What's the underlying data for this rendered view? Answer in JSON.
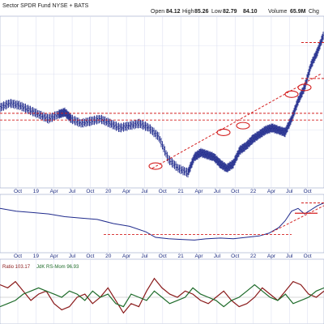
{
  "header": {
    "symbol_line": "Sector SPDR Fund NYSE + BATS",
    "open_label": "Open",
    "open": "84.12",
    "high_label": "High",
    "high": "85.26",
    "low_label": "Low",
    "low": "82.79",
    "close_label": "",
    "close": "84.10",
    "volume_label": "Volume",
    "volume": "65.9M",
    "chg_label": "Chg"
  },
  "indicator": {
    "ratio_label": "Ratio 103.17",
    "jdk_label": "JdK RS-Mom 96.93"
  },
  "colors": {
    "price_bars": "#1f2a8c",
    "support_lines": "#d42020",
    "rs_line": "#1f2a8c",
    "rs_ratio": "#8a1a1a",
    "rs_mom": "#1e6b2a",
    "grid": "#d8dcef",
    "zero_line": "#b0b0b0"
  },
  "chart_data": {
    "type": "line",
    "x_ticks": [
      "Oct",
      "19",
      "Apr",
      "Jul",
      "Oct",
      "20",
      "Apr",
      "Jul",
      "Oct",
      "21",
      "Apr",
      "Jul",
      "Oct",
      "22",
      "Apr",
      "Jul",
      "Oct"
    ],
    "price": {
      "series_kind": "ohlc",
      "x": [
        0,
        3,
        6,
        9,
        12,
        15,
        18,
        20,
        22,
        25,
        28,
        31,
        34,
        37,
        40,
        43,
        46,
        49,
        52,
        55,
        58,
        60,
        62,
        64,
        66,
        68,
        70,
        72,
        74,
        76,
        78,
        80,
        82,
        84,
        86,
        88,
        90,
        92,
        94,
        96,
        98,
        100
      ],
      "y": [
        55,
        57,
        56,
        54,
        52,
        50,
        52,
        53,
        50,
        48,
        49,
        50,
        48,
        46,
        47,
        48,
        46,
        42,
        32,
        28,
        26,
        33,
        35,
        34,
        33,
        30,
        28,
        30,
        36,
        38,
        41,
        43,
        45,
        46,
        45,
        44,
        50,
        58,
        64,
        74,
        80,
        88
      ],
      "support_levels": [
        {
          "level": 52.5,
          "x_range": [
            0,
            100
          ]
        },
        {
          "level": 49.5,
          "x_range": [
            0,
            100
          ]
        },
        {
          "level": 68,
          "x_range": [
            93,
            100
          ]
        },
        {
          "level": 84,
          "x_range": [
            93,
            100
          ]
        }
      ],
      "uptrend": {
        "from": [
          47,
          28
        ],
        "to": [
          99,
          70
        ]
      },
      "highlight_lows": [
        [
          48,
          29
        ],
        [
          69,
          44
        ],
        [
          75,
          47
        ],
        [
          90,
          61
        ],
        [
          94,
          64
        ]
      ],
      "ylim": [
        20,
        95
      ]
    },
    "relative_strength": {
      "x": [
        0,
        5,
        10,
        15,
        20,
        25,
        30,
        35,
        40,
        45,
        48,
        52,
        56,
        60,
        64,
        68,
        72,
        76,
        80,
        83,
        86,
        88,
        90,
        92,
        94,
        96,
        98,
        100
      ],
      "y": [
        62,
        58,
        56,
        54,
        50,
        48,
        46,
        40,
        36,
        28,
        20,
        18,
        17,
        16,
        18,
        19,
        18,
        20,
        22,
        26,
        34,
        44,
        58,
        62,
        54,
        60,
        66,
        70
      ],
      "support_level": 24,
      "ylim": [
        0,
        80
      ]
    },
    "rrg_lines": {
      "series": [
        {
          "name": "Ratio",
          "values": [
            4,
            3,
            5,
            2,
            -1,
            1,
            2,
            -2,
            -4,
            -3,
            0,
            1,
            -2,
            0,
            3,
            -1,
            -5,
            -2,
            -3,
            2,
            6,
            3,
            1,
            0,
            2,
            1,
            -1,
            -2,
            0,
            2,
            -1,
            -3,
            -2,
            0,
            3,
            1,
            -1,
            2,
            5,
            4,
            1,
            0,
            2
          ]
        },
        {
          "name": "RS-Mom",
          "values": [
            -3,
            -2,
            -1,
            1,
            2,
            3,
            2,
            1,
            0,
            2,
            1,
            -1,
            2,
            0,
            1,
            -2,
            -3,
            1,
            0,
            -1,
            2,
            0,
            -2,
            -1,
            0,
            3,
            1,
            0,
            -1,
            -3,
            -1,
            0,
            2,
            4,
            2,
            0,
            -1,
            1,
            -2,
            -1,
            0,
            2,
            3
          ]
        }
      ],
      "ylim": [
        -8,
        8
      ]
    }
  }
}
